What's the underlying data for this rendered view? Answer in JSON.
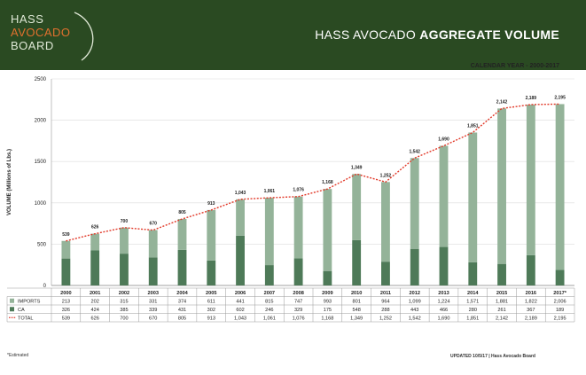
{
  "header": {
    "logo": [
      "HASS",
      "AVOCADO",
      "BOARD"
    ],
    "title_regular": "HASS AVOCADO ",
    "title_bold": "AGGREGATE VOLUME",
    "subtitle": "CALENDAR YEAR - 2000-2017"
  },
  "colors": {
    "header_bg": "#2a4a22",
    "imports": "#94b399",
    "ca": "#4e7a58",
    "total_line": "#e23a2a"
  },
  "chart_data": {
    "type": "bar",
    "stacked": true,
    "categories": [
      "2000",
      "2001",
      "2002",
      "2003",
      "2004",
      "2005",
      "2006",
      "2007",
      "2008",
      "2009",
      "2010",
      "2011",
      "2012",
      "2013",
      "2014",
      "2015",
      "2016",
      "2017*"
    ],
    "series": [
      {
        "name": "IMPORTS",
        "values": [
          213,
          202,
          315,
          331,
          374,
          611,
          441,
          815,
          747,
          993,
          801,
          964,
          1099,
          1224,
          1571,
          1881,
          1822,
          2006
        ]
      },
      {
        "name": "CA",
        "values": [
          326,
          424,
          385,
          339,
          431,
          302,
          602,
          246,
          329,
          175,
          548,
          288,
          443,
          466,
          280,
          261,
          367,
          189
        ]
      },
      {
        "name": "TOTAL",
        "type": "line",
        "values": [
          539,
          626,
          700,
          670,
          805,
          913,
          1043,
          1061,
          1076,
          1168,
          1349,
          1252,
          1542,
          1690,
          1851,
          2142,
          2189,
          2195
        ]
      }
    ],
    "total_labels": [
      "539",
      "626",
      "700",
      "670",
      "805",
      "913",
      "1,043",
      "1,061",
      "1,076",
      "1,168",
      "1,349",
      "1,252",
      "1,542",
      "1,690",
      "1,851",
      "2,142",
      "2,189",
      "2,195"
    ],
    "ylabel": "VOLUME (Millions of Lbs.)",
    "ylim": [
      0,
      2500
    ],
    "yticks": [
      0,
      500,
      1000,
      1500,
      2000,
      2500
    ],
    "table": {
      "rows": [
        {
          "label": "IMPORTS",
          "values": [
            "213",
            "202",
            "315",
            "331",
            "374",
            "611",
            "441",
            "815",
            "747",
            "993",
            "801",
            "964",
            "1,099",
            "1,224",
            "1,571",
            "1,881",
            "1,822",
            "2,006"
          ]
        },
        {
          "label": "CA",
          "values": [
            "326",
            "424",
            "385",
            "339",
            "431",
            "302",
            "602",
            "246",
            "329",
            "175",
            "548",
            "288",
            "443",
            "466",
            "280",
            "261",
            "367",
            "189"
          ]
        },
        {
          "label": "TOTAL",
          "values": [
            "539",
            "626",
            "700",
            "670",
            "805",
            "913",
            "1,043",
            "1,061",
            "1,076",
            "1,168",
            "1,349",
            "1,252",
            "1,542",
            "1,690",
            "1,851",
            "2,142",
            "2,189",
            "2,195"
          ]
        }
      ]
    }
  },
  "footer": {
    "note": "*Estimated",
    "updated": "UPDATED 10/5/17 | Hass Avocado Board"
  }
}
